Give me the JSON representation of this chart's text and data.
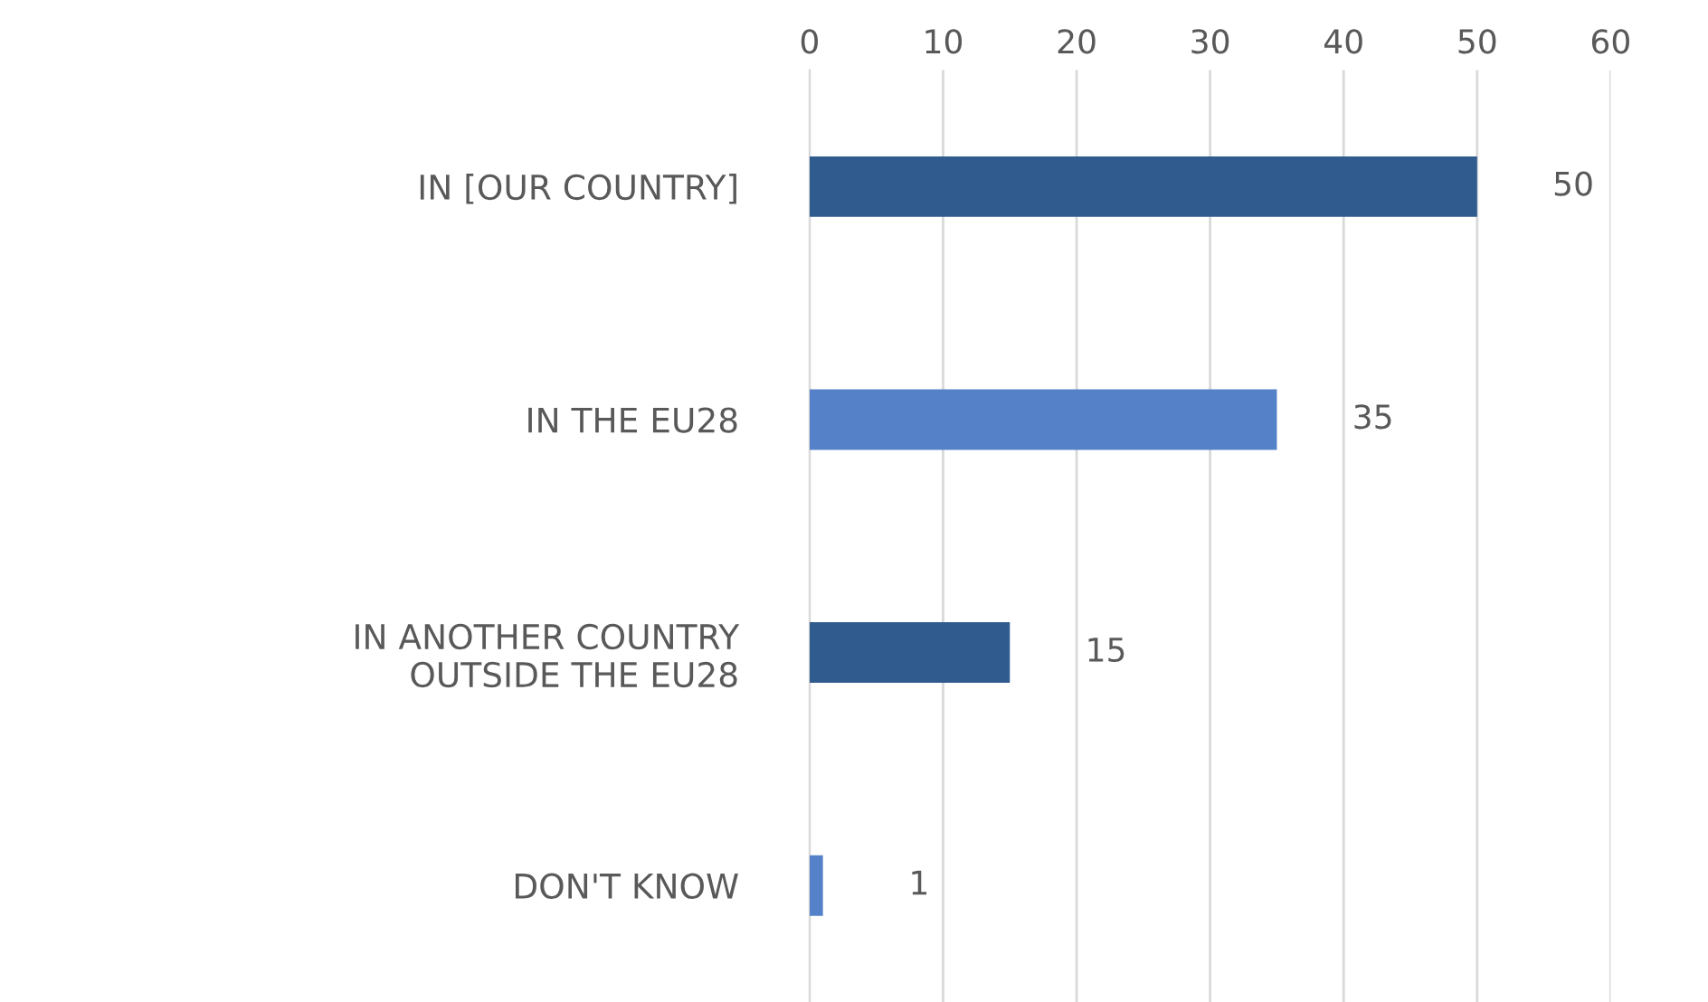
{
  "chart_data": {
    "type": "bar",
    "orientation": "horizontal",
    "categories": [
      "IN [OUR COUNTRY]",
      "IN THE EU28",
      "IN ANOTHER COUNTRY\nOUTSIDE THE EU28",
      "DON'T KNOW"
    ],
    "values": [
      50,
      35,
      15,
      1
    ],
    "colors": [
      "#2f5b8f",
      "#5581c8",
      "#2f5b8f",
      "#5581c8"
    ],
    "xlim": [
      0,
      60
    ],
    "xticks": [
      0,
      10,
      20,
      30,
      40,
      50,
      60
    ],
    "grid": "x",
    "data_labels": true
  }
}
